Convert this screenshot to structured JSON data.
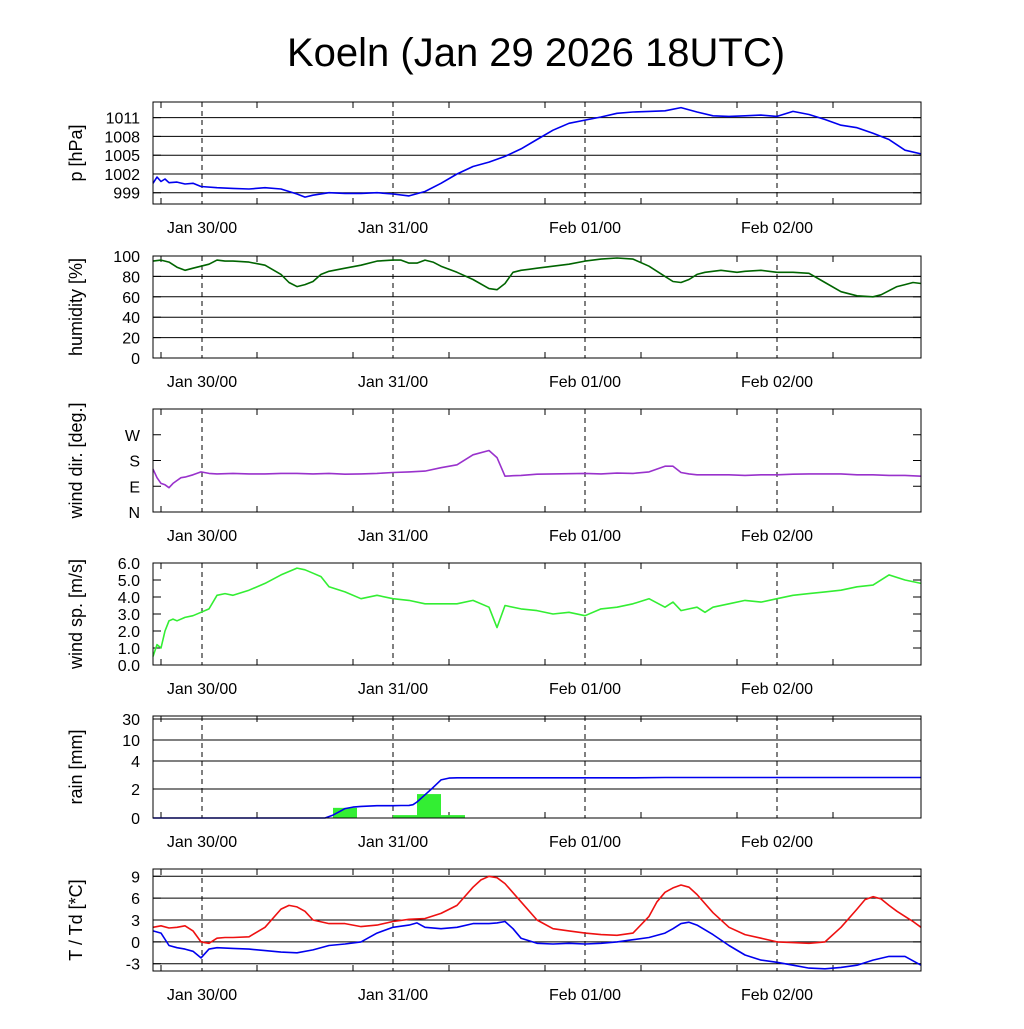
{
  "title": "Koeln (Jan 29 2026 18UTC)",
  "colors": {
    "pressure": "#0000ee",
    "humidity": "#006400",
    "wind_dir": "#9932cc",
    "wind_speed": "#33ee33",
    "rain_bar": "#33ee33",
    "rain_cumulative": "#0000ee",
    "temperature": "#ee1111",
    "dewpoint": "#0000ee"
  },
  "chart_data": [
    {
      "type": "line",
      "name": "pressure",
      "ylabel": "p [hPa]",
      "x_ticks": [
        "Jan 30/00",
        "Jan 31/00",
        "Feb 01/00",
        "Feb 02/00"
      ],
      "x_range_hours": [
        0,
        96
      ],
      "y_ticks": [
        999,
        1002,
        1005,
        1008,
        1011
      ],
      "ylim": [
        997.2,
        1013.5
      ],
      "grid": "horizontal at y ticks; dashed vertical at day boundaries",
      "series": [
        {
          "color_key": "pressure",
          "x": [
            0,
            0.5,
            1,
            1.5,
            2,
            3,
            4,
            5,
            6,
            8,
            10,
            12,
            14,
            16,
            18,
            19,
            20,
            22,
            24,
            26,
            28,
            30,
            32,
            34,
            36,
            38,
            40,
            42,
            44,
            46,
            48,
            50,
            52,
            54,
            56,
            58,
            60,
            62,
            64,
            66,
            68,
            70,
            72,
            74,
            76,
            78,
            80,
            82,
            84,
            86,
            88,
            90,
            92,
            94,
            96
          ],
          "values": [
            1000.5,
            1001.5,
            1000.8,
            1001.2,
            1000.6,
            1000.7,
            1000.4,
            1000.5,
            1000.0,
            999.8,
            999.7,
            999.6,
            999.8,
            999.6,
            998.8,
            998.3,
            998.6,
            999.0,
            998.9,
            998.9,
            999.0,
            998.8,
            998.5,
            999.2,
            1000.5,
            1002.0,
            1003.2,
            1003.9,
            1004.8,
            1006.0,
            1007.5,
            1009.0,
            1010.1,
            1010.6,
            1011.1,
            1011.7,
            1011.9,
            1012.0,
            1012.1,
            1012.6,
            1011.9,
            1011.3,
            1011.2,
            1011.3,
            1011.4,
            1011.2,
            1012.0,
            1011.5,
            1010.7,
            1009.8,
            1009.4,
            1008.5,
            1007.5,
            1005.8,
            1005.2
          ]
        }
      ]
    },
    {
      "type": "line",
      "name": "humidity",
      "ylabel": "humidity [%]",
      "x_ticks": [
        "Jan 30/00",
        "Jan 31/00",
        "Feb 01/00",
        "Feb 02/00"
      ],
      "x_range_hours": [
        0,
        96
      ],
      "y_ticks": [
        0,
        20,
        40,
        60,
        80,
        100
      ],
      "ylim": [
        0,
        100
      ],
      "grid": "horizontal at y ticks; dashed vertical at day boundaries",
      "series": [
        {
          "color_key": "humidity",
          "x": [
            0,
            1,
            2,
            3,
            4,
            5,
            6,
            7,
            8,
            9,
            10,
            12,
            14,
            16,
            17,
            18,
            19,
            20,
            21,
            22,
            24,
            26,
            28,
            30,
            31,
            32,
            33,
            34,
            35,
            36,
            38,
            40,
            42,
            43,
            44,
            45,
            46,
            47,
            48,
            50,
            52,
            54,
            56,
            58,
            60,
            62,
            63,
            64,
            65,
            66,
            67,
            68,
            69,
            70,
            71,
            72,
            73,
            74,
            76,
            78,
            80,
            82,
            84,
            86,
            88,
            90,
            91,
            92,
            93,
            94,
            95,
            96
          ],
          "values": [
            95,
            96,
            94,
            89,
            86,
            88,
            90,
            92,
            96,
            95,
            95,
            94,
            91,
            82,
            74,
            70,
            72,
            75,
            82,
            85,
            88,
            91,
            95,
            96,
            96,
            93,
            93,
            96,
            94,
            90,
            84,
            77,
            68,
            67,
            73,
            84,
            86,
            87,
            88,
            90,
            92,
            95,
            97,
            98,
            97,
            90,
            85,
            80,
            75,
            74,
            77,
            82,
            84,
            85,
            86,
            85,
            84,
            85,
            86,
            84,
            84,
            83,
            74,
            65,
            61,
            60,
            62,
            66,
            70,
            72,
            74,
            73
          ]
        }
      ]
    },
    {
      "type": "line",
      "name": "wind_direction",
      "ylabel": "wind dir. [deg.]",
      "x_ticks": [
        "Jan 30/00",
        "Jan 31/00",
        "Feb 01/00",
        "Feb 02/00"
      ],
      "x_range_hours": [
        0,
        96
      ],
      "y_ticks": [
        "N",
        "E",
        "S",
        "W"
      ],
      "y_tick_values_deg": [
        0,
        90,
        180,
        270
      ],
      "ylim": [
        0,
        360
      ],
      "grid": "dashed vertical at day boundaries",
      "series": [
        {
          "color_key": "wind_dir",
          "x": [
            0,
            0.5,
            1,
            1.5,
            2,
            2.5,
            3,
            3.5,
            4,
            5,
            6,
            7,
            8,
            10,
            12,
            14,
            16,
            18,
            20,
            22,
            24,
            26,
            28,
            30,
            32,
            34,
            36,
            38,
            40,
            42,
            43,
            44,
            45,
            46,
            47,
            48,
            50,
            52,
            54,
            56,
            58,
            60,
            62,
            64,
            65,
            66,
            67,
            68,
            70,
            72,
            74,
            76,
            78,
            80,
            82,
            84,
            86,
            88,
            90,
            92,
            94,
            96
          ],
          "values": [
            150,
            120,
            100,
            95,
            85,
            100,
            110,
            120,
            122,
            130,
            140,
            135,
            133,
            135,
            133,
            133,
            135,
            135,
            133,
            135,
            132,
            133,
            135,
            138,
            140,
            143,
            155,
            165,
            200,
            215,
            190,
            125,
            127,
            128,
            130,
            132,
            133,
            134,
            135,
            133,
            136,
            135,
            140,
            160,
            160,
            138,
            133,
            130,
            130,
            130,
            128,
            130,
            130,
            132,
            133,
            133,
            133,
            130,
            130,
            128,
            128,
            125
          ]
        }
      ]
    },
    {
      "type": "line",
      "name": "wind_speed",
      "ylabel": "wind sp. [m/s]",
      "x_ticks": [
        "Jan 30/00",
        "Jan 31/00",
        "Feb 01/00",
        "Feb 02/00"
      ],
      "x_range_hours": [
        0,
        96
      ],
      "y_ticks": [
        "0.0",
        "1.0",
        "2.0",
        "3.0",
        "4.0",
        "5.0",
        "6.0"
      ],
      "ylim": [
        0,
        6
      ],
      "grid": "dashed vertical at day boundaries",
      "series": [
        {
          "color_key": "wind_speed",
          "x": [
            0,
            0.5,
            1,
            1.5,
            2,
            2.5,
            3,
            4,
            5,
            6,
            7,
            8,
            9,
            10,
            12,
            14,
            16,
            18,
            19,
            20,
            21,
            22,
            24,
            26,
            28,
            30,
            32,
            34,
            36,
            38,
            40,
            42,
            43,
            44,
            46,
            48,
            50,
            52,
            54,
            56,
            58,
            60,
            62,
            64,
            65,
            66,
            67,
            68,
            69,
            70,
            72,
            74,
            76,
            78,
            80,
            82,
            84,
            86,
            88,
            90,
            92,
            94,
            96
          ],
          "values": [
            0.5,
            1.2,
            1.0,
            2.0,
            2.6,
            2.7,
            2.6,
            2.8,
            2.9,
            3.1,
            3.3,
            4.1,
            4.2,
            4.1,
            4.4,
            4.8,
            5.3,
            5.7,
            5.6,
            5.4,
            5.2,
            4.6,
            4.3,
            3.9,
            4.1,
            3.9,
            3.8,
            3.6,
            3.6,
            3.6,
            3.8,
            3.4,
            2.2,
            3.5,
            3.3,
            3.2,
            3.0,
            3.1,
            2.9,
            3.3,
            3.4,
            3.6,
            3.9,
            3.4,
            3.7,
            3.2,
            3.3,
            3.4,
            3.1,
            3.4,
            3.6,
            3.8,
            3.7,
            3.9,
            4.1,
            4.2,
            4.3,
            4.4,
            4.6,
            4.7,
            5.3,
            5.0,
            4.8
          ]
        }
      ]
    },
    {
      "type": "bar",
      "name": "rain",
      "ylabel": "rain [mm]",
      "x_ticks": [
        "Jan 30/00",
        "Jan 31/00",
        "Feb 01/00",
        "Feb 02/00"
      ],
      "x_range_hours": [
        0,
        96
      ],
      "y_ticks": [
        0,
        2,
        4,
        10,
        30
      ],
      "y_scale": "piecewise (0-4 linear, 4-10, 10-30)",
      "grid": "horizontal at y ticks; dashed vertical at day boundaries",
      "bars": [
        {
          "x_start": 22.5,
          "x_end": 25.5,
          "value": 0.7
        },
        {
          "x_start": 30,
          "x_end": 33,
          "value": 0.2
        },
        {
          "x_start": 33,
          "x_end": 36,
          "value": 1.65
        },
        {
          "x_start": 36,
          "x_end": 39,
          "value": 0.2
        }
      ],
      "series": [
        {
          "name": "cumulative",
          "color_key": "rain_cumulative",
          "x": [
            0,
            21.5,
            22.5,
            23.5,
            24,
            25,
            26,
            27,
            28,
            30,
            31,
            32,
            32.5,
            33,
            34,
            35,
            36,
            37,
            38,
            40,
            44,
            48,
            52,
            56,
            60,
            64,
            72,
            80,
            88,
            96
          ],
          "values": [
            0,
            0,
            0.2,
            0.5,
            0.65,
            0.75,
            0.8,
            0.82,
            0.85,
            0.85,
            0.86,
            0.87,
            0.92,
            1.1,
            1.6,
            2.1,
            2.65,
            2.78,
            2.8,
            2.8,
            2.8,
            2.8,
            2.8,
            2.8,
            2.8,
            2.82,
            2.82,
            2.82,
            2.82,
            2.82
          ]
        }
      ]
    },
    {
      "type": "line",
      "name": "temperature_dewpoint",
      "ylabel": "T / Td [*C]",
      "x_ticks": [
        "Jan 30/00",
        "Jan 31/00",
        "Feb 01/00",
        "Feb 02/00"
      ],
      "x_range_hours": [
        0,
        96
      ],
      "y_ticks": [
        -3,
        0,
        3,
        6,
        9
      ],
      "ylim": [
        -4,
        10
      ],
      "grid": "horizontal at y ticks; dashed vertical at day boundaries",
      "series": [
        {
          "name": "T",
          "color_key": "temperature",
          "x": [
            0,
            1,
            2,
            3,
            4,
            5,
            6,
            7,
            8,
            9,
            10,
            12,
            14,
            16,
            17,
            18,
            19,
            20,
            22,
            24,
            26,
            28,
            30,
            32,
            34,
            36,
            38,
            40,
            41,
            42,
            43,
            44,
            46,
            48,
            50,
            52,
            54,
            56,
            58,
            60,
            62,
            63,
            64,
            65,
            66,
            67,
            68,
            70,
            72,
            74,
            76,
            78,
            80,
            82,
            84,
            86,
            88,
            89,
            90,
            91,
            92,
            93,
            94,
            95,
            96
          ],
          "values": [
            2.0,
            2.2,
            1.9,
            2.0,
            2.2,
            1.5,
            0.0,
            -0.2,
            0.5,
            0.6,
            0.6,
            0.7,
            2.0,
            4.5,
            5.0,
            4.8,
            4.2,
            3.0,
            2.5,
            2.5,
            2.1,
            2.3,
            2.8,
            3.1,
            3.2,
            3.9,
            5.0,
            7.5,
            8.5,
            9.0,
            8.8,
            8.0,
            5.5,
            3.0,
            1.8,
            1.5,
            1.2,
            1.0,
            0.9,
            1.2,
            3.5,
            5.5,
            6.8,
            7.4,
            7.8,
            7.5,
            6.5,
            4.0,
            2.0,
            1.0,
            0.5,
            0.0,
            -0.1,
            -0.2,
            0.0,
            2.0,
            4.5,
            5.8,
            6.2,
            5.9,
            5.0,
            4.2,
            3.5,
            2.8,
            2.0
          ]
        },
        {
          "name": "Td",
          "color_key": "dewpoint",
          "x": [
            0,
            1,
            2,
            3,
            4,
            5,
            6,
            7,
            8,
            10,
            12,
            14,
            16,
            18,
            20,
            22,
            24,
            26,
            28,
            30,
            32,
            33,
            34,
            36,
            38,
            40,
            42,
            43,
            44,
            45,
            46,
            48,
            50,
            52,
            54,
            56,
            58,
            60,
            62,
            64,
            65,
            66,
            67,
            68,
            70,
            72,
            74,
            76,
            78,
            80,
            82,
            84,
            86,
            88,
            90,
            92,
            94,
            96
          ],
          "values": [
            1.5,
            1.2,
            -0.5,
            -0.8,
            -1.0,
            -1.3,
            -2.2,
            -1.0,
            -0.8,
            -0.9,
            -1.0,
            -1.2,
            -1.4,
            -1.5,
            -1.1,
            -0.5,
            -0.3,
            0.0,
            1.2,
            2.0,
            2.3,
            2.6,
            2.0,
            1.8,
            2.0,
            2.5,
            2.5,
            2.6,
            2.8,
            1.8,
            0.5,
            -0.2,
            -0.3,
            -0.2,
            -0.3,
            -0.2,
            0.0,
            0.3,
            0.6,
            1.2,
            1.8,
            2.5,
            2.7,
            2.3,
            1.0,
            -0.5,
            -1.8,
            -2.5,
            -2.8,
            -3.2,
            -3.6,
            -3.7,
            -3.5,
            -3.2,
            -2.5,
            -2.0,
            -2.0,
            -3.2
          ]
        }
      ]
    }
  ]
}
